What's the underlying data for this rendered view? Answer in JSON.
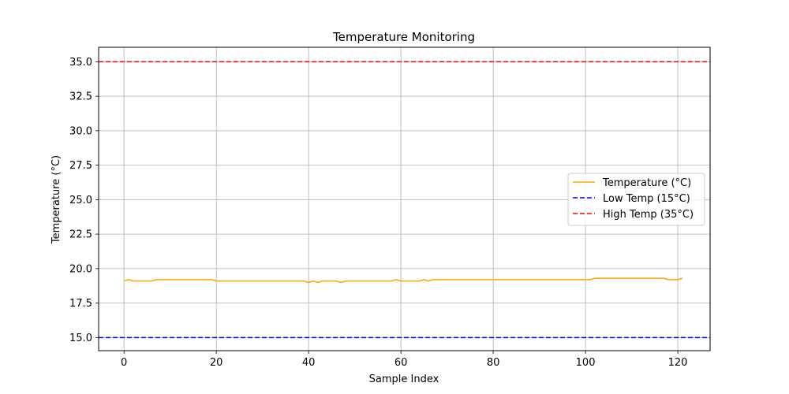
{
  "chart_data": {
    "type": "line",
    "title": "Temperature Monitoring",
    "xlabel": "Sample Index",
    "ylabel": "Temperature (°C)",
    "xlim": [
      -5.5,
      127
    ],
    "ylim": [
      14.05,
      36.05
    ],
    "xticks": [
      0,
      20,
      40,
      60,
      80,
      100,
      120
    ],
    "yticks": [
      15.0,
      17.5,
      20.0,
      22.5,
      25.0,
      27.5,
      30.0,
      32.5,
      35.0
    ],
    "grid": true,
    "legend_position": "center-right",
    "series": [
      {
        "name": "Temperature (°C)",
        "color": "#ffa500",
        "style": "solid",
        "x": [
          0,
          1,
          2,
          3,
          4,
          5,
          6,
          7,
          8,
          9,
          10,
          11,
          12,
          13,
          14,
          15,
          16,
          17,
          18,
          19,
          20,
          21,
          22,
          23,
          24,
          25,
          26,
          27,
          28,
          29,
          30,
          31,
          32,
          33,
          34,
          35,
          36,
          37,
          38,
          39,
          40,
          41,
          42,
          43,
          44,
          45,
          46,
          47,
          48,
          49,
          50,
          51,
          52,
          53,
          54,
          55,
          56,
          57,
          58,
          59,
          60,
          61,
          62,
          63,
          64,
          65,
          66,
          67,
          68,
          69,
          70,
          71,
          72,
          73,
          74,
          75,
          76,
          77,
          78,
          79,
          80,
          81,
          82,
          83,
          84,
          85,
          86,
          87,
          88,
          89,
          90,
          91,
          92,
          93,
          94,
          95,
          96,
          97,
          98,
          99,
          100,
          101,
          102,
          103,
          104,
          105,
          106,
          107,
          108,
          109,
          110,
          111,
          112,
          113,
          114,
          115,
          116,
          117,
          118,
          119,
          120,
          121
        ],
        "y": [
          19.1,
          19.2,
          19.1,
          19.1,
          19.1,
          19.1,
          19.1,
          19.2,
          19.2,
          19.2,
          19.2,
          19.2,
          19.2,
          19.2,
          19.2,
          19.2,
          19.2,
          19.2,
          19.2,
          19.2,
          19.1,
          19.1,
          19.1,
          19.1,
          19.1,
          19.1,
          19.1,
          19.1,
          19.1,
          19.1,
          19.1,
          19.1,
          19.1,
          19.1,
          19.1,
          19.1,
          19.1,
          19.1,
          19.1,
          19.1,
          19.0,
          19.1,
          19.0,
          19.1,
          19.1,
          19.1,
          19.1,
          19.0,
          19.1,
          19.1,
          19.1,
          19.1,
          19.1,
          19.1,
          19.1,
          19.1,
          19.1,
          19.1,
          19.1,
          19.2,
          19.1,
          19.1,
          19.1,
          19.1,
          19.1,
          19.2,
          19.1,
          19.2,
          19.2,
          19.2,
          19.2,
          19.2,
          19.2,
          19.2,
          19.2,
          19.2,
          19.2,
          19.2,
          19.2,
          19.2,
          19.2,
          19.2,
          19.2,
          19.2,
          19.2,
          19.2,
          19.2,
          19.2,
          19.2,
          19.2,
          19.2,
          19.2,
          19.2,
          19.2,
          19.2,
          19.2,
          19.2,
          19.2,
          19.2,
          19.2,
          19.2,
          19.2,
          19.3,
          19.3,
          19.3,
          19.3,
          19.3,
          19.3,
          19.3,
          19.3,
          19.3,
          19.3,
          19.3,
          19.3,
          19.3,
          19.3,
          19.3,
          19.3,
          19.2,
          19.2,
          19.2,
          19.3
        ]
      },
      {
        "name": "Low Temp (15°C)",
        "color": "#0000ff",
        "style": "dashed",
        "hline": 15
      },
      {
        "name": "High Temp (35°C)",
        "color": "#ff0000",
        "style": "dashed",
        "hline": 35
      }
    ]
  }
}
